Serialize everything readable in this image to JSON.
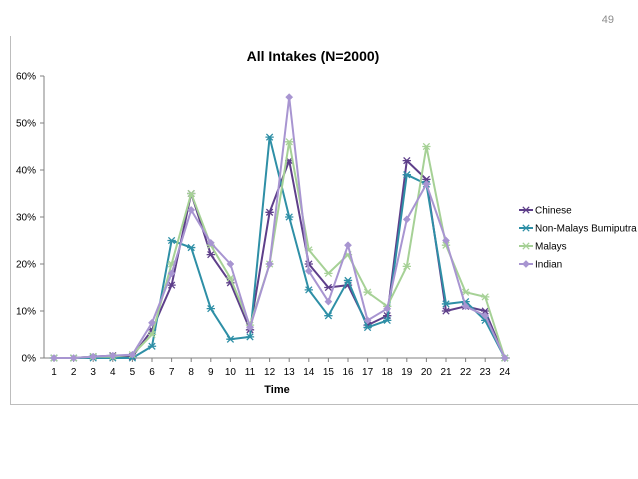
{
  "page": {
    "slide_number": "49"
  },
  "chart_data": {
    "type": "line",
    "title": "All Intakes (N=2000)",
    "xlabel": "Time",
    "ylabel": "",
    "x": [
      1,
      2,
      3,
      4,
      5,
      6,
      7,
      8,
      9,
      10,
      11,
      12,
      13,
      14,
      15,
      16,
      17,
      18,
      19,
      20,
      21,
      22,
      23,
      24
    ],
    "ylim": [
      0,
      60
    ],
    "y_ticks": [
      "0%",
      "10%",
      "20%",
      "30%",
      "40%",
      "50%",
      "60%"
    ],
    "grid": false,
    "legend_position": "right",
    "series": [
      {
        "name": "Chinese",
        "color": "#5e3f8a",
        "marker": "star",
        "values": [
          0,
          0,
          0.3,
          0.5,
          0.3,
          6,
          15.5,
          35,
          22,
          16,
          6,
          31,
          42,
          20,
          15,
          15.5,
          7,
          9,
          42,
          38,
          10,
          11,
          10,
          0
        ]
      },
      {
        "name": "Non-Malays Bumiputra",
        "color": "#2e8fa6",
        "marker": "star",
        "values": [
          0,
          0,
          0,
          0,
          0,
          2.5,
          25,
          23.5,
          10.5,
          4,
          4.5,
          47,
          30,
          14.5,
          9,
          16.5,
          6.5,
          8,
          39,
          37,
          11.5,
          12,
          8,
          0
        ]
      },
      {
        "name": "Malays",
        "color": "#a6d196",
        "marker": "star",
        "values": [
          0,
          0,
          0.3,
          0.3,
          0.7,
          5,
          20,
          35,
          24,
          17,
          7,
          20,
          46,
          23,
          18,
          22,
          14,
          11,
          19.5,
          45,
          24,
          14,
          13,
          0
        ]
      },
      {
        "name": "Indian",
        "color": "#a895d1",
        "marker": "diamond",
        "values": [
          0,
          0,
          0.3,
          0.5,
          0.7,
          7.5,
          18,
          31.5,
          24.5,
          20,
          6.5,
          20,
          55.5,
          18.5,
          12,
          24,
          8,
          10.5,
          29.5,
          37,
          25,
          11,
          9,
          0
        ]
      }
    ]
  }
}
